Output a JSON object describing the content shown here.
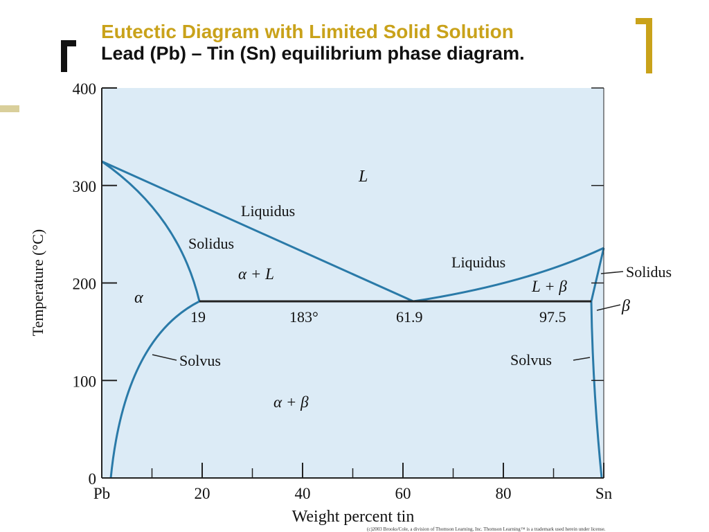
{
  "header": {
    "title": "Eutectic Diagram with Limited Solid Solution",
    "subtitle": "Lead (Pb) – Tin (Sn) equilibrium phase diagram."
  },
  "colors": {
    "accent": "#c9a21a",
    "plot_background": "#dcebf6",
    "curve": "#2a7aa8",
    "eutectic_line": "#222222"
  },
  "diagram": {
    "x_axis_label": "Weight percent tin",
    "y_axis_label": "Temperature (°C)",
    "x_ticks": [
      {
        "value": 0,
        "label": "Pb"
      },
      {
        "value": 20,
        "label": "20"
      },
      {
        "value": 40,
        "label": "40"
      },
      {
        "value": 60,
        "label": "60"
      },
      {
        "value": 80,
        "label": "80"
      },
      {
        "value": 100,
        "label": "Sn"
      }
    ],
    "x_minor_ticks": [
      10,
      30,
      50,
      70,
      90
    ],
    "y_ticks": [
      {
        "value": 0,
        "label": "0"
      },
      {
        "value": 100,
        "label": "100"
      },
      {
        "value": 200,
        "label": "200"
      },
      {
        "value": 300,
        "label": "300"
      },
      {
        "value": 400,
        "label": "400"
      }
    ],
    "x_range": [
      0,
      100
    ],
    "y_range": [
      0,
      400
    ],
    "melting_point_pb": 327,
    "melting_point_sn": 232,
    "eutectic_temperature": 183,
    "eutectic_composition": 61.9,
    "alpha_max_solubility": 19,
    "beta_max_solubility": 97.5,
    "point_labels": {
      "alpha_limit": "19",
      "eutectic_temp": "183°",
      "eutectic_comp": "61.9",
      "beta_limit": "97.5"
    },
    "region_labels": {
      "liquid": "L",
      "liquidus_left": "Liquidus",
      "solidus_left": "Solidus",
      "alpha_plus_liquid": "α + L",
      "alpha": "α",
      "solvus_left": "Solvus",
      "alpha_plus_beta": "α + β",
      "liquidus_right": "Liquidus",
      "liquid_plus_beta": "L + β",
      "solidus_right": "Solidus",
      "beta": "β",
      "solvus_right": "Solvus"
    },
    "credit": "(c)2003 Brooks/Cole, a division of Thomson Learning, Inc. Thomson Learning™ is a trademark used herein under license."
  }
}
